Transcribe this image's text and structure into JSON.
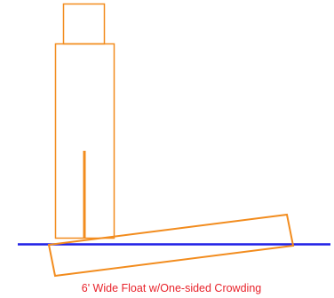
{
  "caption": "6' Wide Float w/One-sided Crowding",
  "colors": {
    "outline": "#f28c1e",
    "waterline": "#1f1fe6",
    "caption": "#e8232b",
    "background": "#ffffff"
  }
}
